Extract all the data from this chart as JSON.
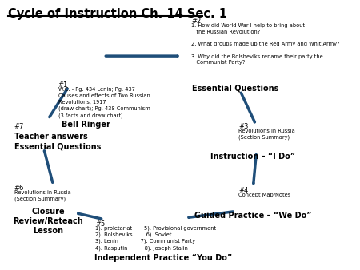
{
  "title": "Cycle of Instruction Ch. 14 Sec. 1",
  "bg_color": "#ffffff",
  "arrow_color": "#1F4E79",
  "node1_num": "#1",
  "node1_sub": "W.C. - Pg. 434 Lenin; Pg. 437\nCauses and effects of Two Russian\nRevolutions, 1917\n(draw chart); Pg. 438 Communism\n(3 facts and draw chart)",
  "node1_label": "Bell Ringer",
  "node2_num": "#2",
  "node2_sub": "1. How did World War I help to bring about\n   the Russian Revolution?\n\n2. What groups made up the Red Army and Whit Army?\n\n3. Why did the Bolsheviks rename their party the\n   Communist Party?",
  "node2_label": "Essential Questions",
  "node3_num": "#3",
  "node3_sub": "Revolutions in Russia\n(Section Summary)",
  "node3_label": "Instruction – “I Do”",
  "node4_num": "#4",
  "node4_sub": "Concept Map/Notes",
  "node4_label": "Guided Practice – “We Do”",
  "node5_num": "#5",
  "node5_sub": "1). proletariat       5). Provisional government\n2). Bolsheviks        6). Soviet\n3). Lenin             7). Communist Party\n4). Rasputin          8). Joseph Stalin",
  "node5_label": "Independent Practice “You Do”",
  "node6_num": "#6",
  "node6_sub": "Revolutions in Russia\n(Section Summary)",
  "node6_label": "Closure\nReview/Reteach\nLesson",
  "node7_num": "#7",
  "node7_label": "Teacher answers\nEssential Questions"
}
